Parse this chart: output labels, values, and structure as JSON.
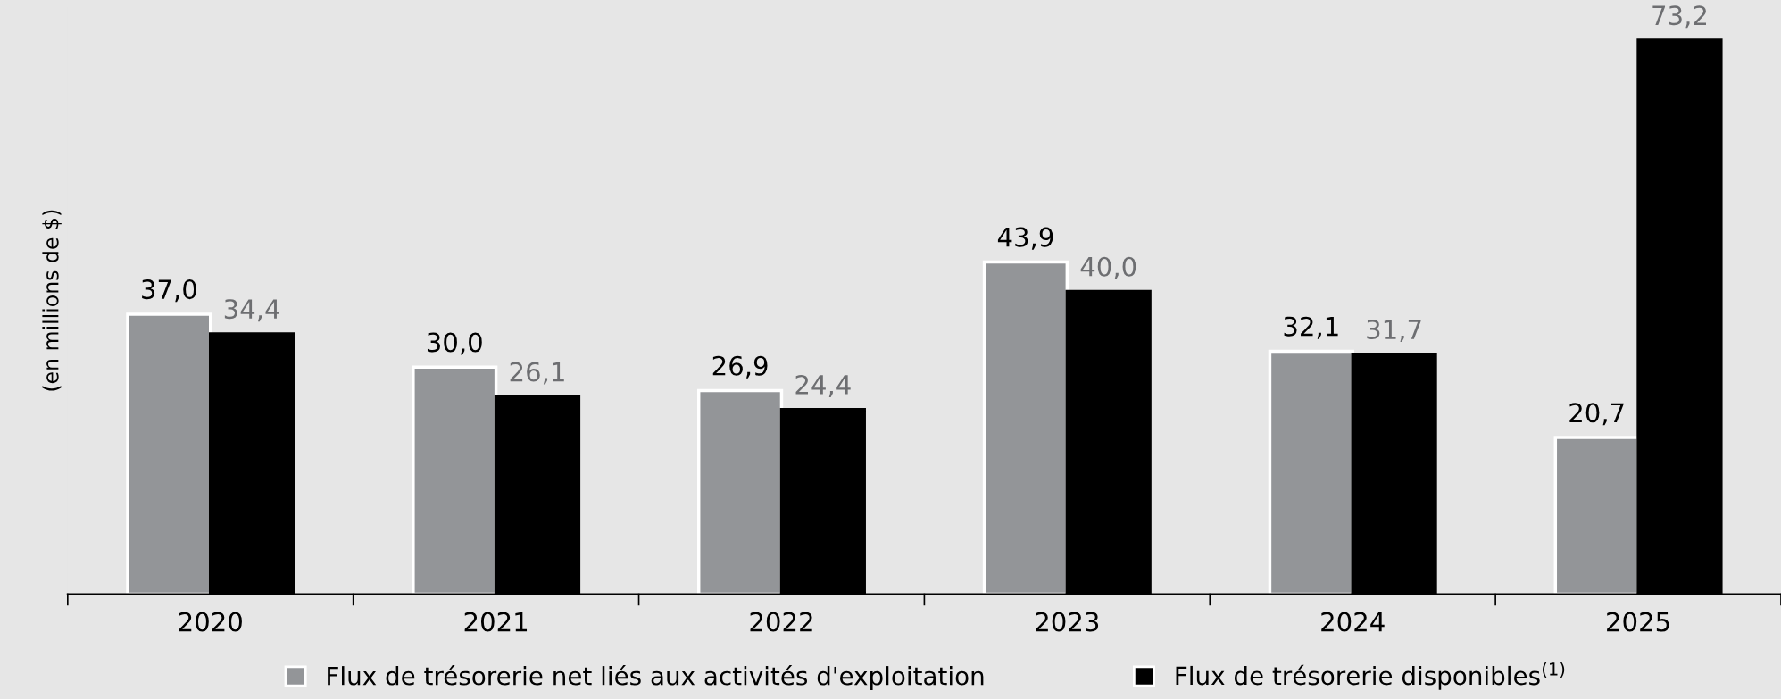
{
  "chart_data": {
    "type": "bar",
    "ylabel": "(en millions de $)",
    "categories": [
      "2020",
      "2021",
      "2022",
      "2023",
      "2024",
      "2025"
    ],
    "series": [
      {
        "name": "Flux de trésorerie net liés aux activités d'exploitation",
        "color": "#939598",
        "values": [
          37.0,
          30.0,
          26.9,
          43.9,
          32.1,
          20.7
        ],
        "value_labels": [
          "37,0",
          "30,0",
          "26,9",
          "43,9",
          "32,1",
          "20,7"
        ]
      },
      {
        "name": "Flux de trésorerie disponibles$^{(1)}$",
        "color": "#000000",
        "values": [
          34.4,
          26.1,
          24.4,
          40.0,
          31.7,
          73.2
        ],
        "value_labels": [
          "34,4",
          "26,1",
          "24,4",
          "40,0",
          "31,7",
          "73,2"
        ]
      }
    ],
    "legend": "bottom",
    "grid": false
  }
}
